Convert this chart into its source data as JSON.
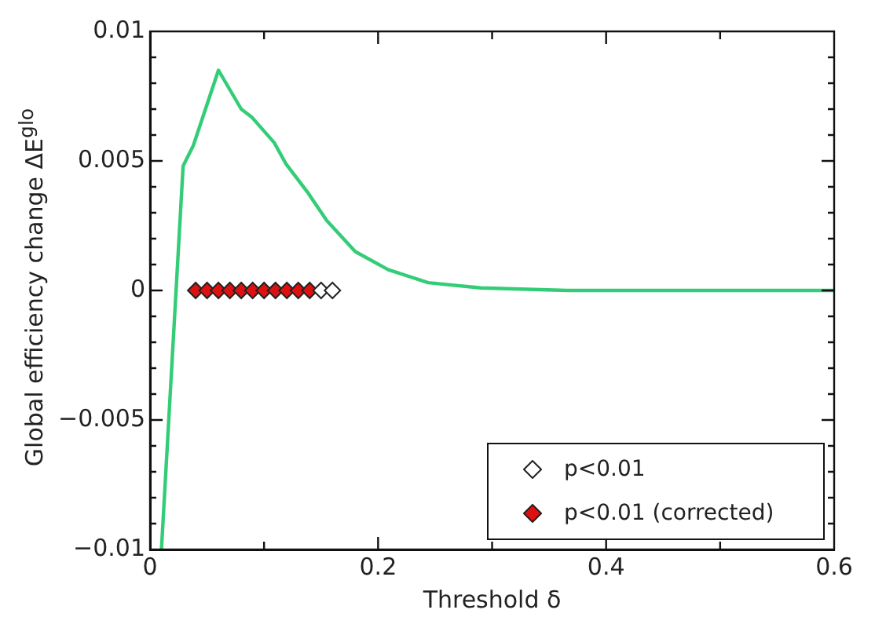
{
  "chart_data": {
    "type": "line",
    "xlabel": "Threshold δ",
    "ylabel": "Global efficiency change ΔE$^{glo}$",
    "xlim": [
      0,
      0.6
    ],
    "ylim": [
      -0.01,
      0.01
    ],
    "xticks": [
      0,
      {
        "value": 0.1,
        "label": null
      },
      0.2,
      {
        "value": 0.3,
        "label": null
      },
      0.4,
      {
        "value": 0.5,
        "label": null
      },
      0.6
    ],
    "yticks": [
      -0.01,
      {
        "value": -0.009,
        "label": null
      },
      {
        "value": -0.008,
        "label": null
      },
      {
        "value": -0.007,
        "label": null
      },
      {
        "value": -0.006,
        "label": null
      },
      -0.005,
      {
        "value": -0.004,
        "label": null
      },
      {
        "value": -0.003,
        "label": null
      },
      {
        "value": -0.002,
        "label": null
      },
      {
        "value": -0.001,
        "label": null
      },
      0,
      {
        "value": 0.001,
        "label": null
      },
      {
        "value": 0.002,
        "label": null
      },
      {
        "value": 0.003,
        "label": null
      },
      {
        "value": 0.004,
        "label": null
      },
      0.005,
      {
        "value": 0.006,
        "label": null
      },
      {
        "value": 0.007,
        "label": null
      },
      {
        "value": 0.008,
        "label": null
      },
      {
        "value": 0.009,
        "label": null
      },
      0.01
    ],
    "grid": false,
    "legend": "bottom right",
    "series": [
      {
        "color": "#33cc77",
        "marker": "none",
        "line_style": "solid",
        "x": [
          0.01,
          0.029,
          0.038,
          0.06,
          0.08,
          0.089,
          0.109,
          0.119,
          0.138,
          0.155,
          0.18,
          0.209,
          0.244,
          0.29,
          0.366,
          0.6
        ],
        "values": [
          -0.01,
          0.0048,
          0.0056,
          0.0085,
          0.007,
          0.0067,
          0.0057,
          0.0049,
          0.0038,
          0.0027,
          0.0015,
          0.0008,
          0.0003,
          0.0001,
          0,
          0
        ]
      },
      {
        "type": "scatter",
        "name": "p<0.01",
        "color": "#ffffff",
        "marker": "diamond",
        "x": [
          0.15,
          0.16
        ],
        "values": [
          0,
          0
        ]
      },
      {
        "type": "scatter",
        "name": "p<0.01 (corrected)",
        "color": "#dd1111",
        "marker": "diamond",
        "x": [
          0.04,
          0.05,
          0.06,
          0.07,
          0.08,
          0.09,
          0.1,
          0.11,
          0.12,
          0.13,
          0.14
        ],
        "values": [
          0,
          0,
          0,
          0,
          0,
          0,
          0,
          0,
          0,
          0,
          0
        ]
      }
    ]
  }
}
